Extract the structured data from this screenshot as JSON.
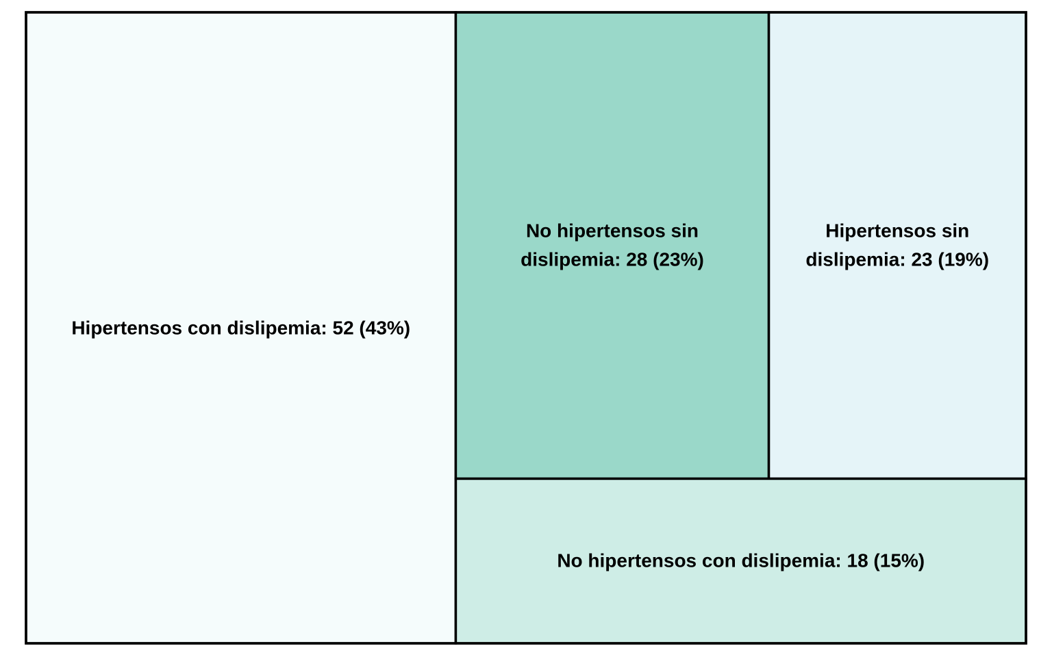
{
  "chart_data": {
    "type": "treemap",
    "title": "",
    "items": [
      {
        "name": "Hipertensos con dislipemia",
        "value": 52,
        "percent": 43,
        "label_lines": [
          "Hipertensos con dislipemia: 52 (43%)"
        ],
        "color": "#f5fcfc"
      },
      {
        "name": "No hipertensos sin dislipemia",
        "value": 28,
        "percent": 23,
        "label_lines": [
          "No hipertensos sin",
          "dislipemia: 28 (23%)"
        ],
        "color": "#9ad8c9"
      },
      {
        "name": "Hipertensos sin dislipemia",
        "value": 23,
        "percent": 19,
        "label_lines": [
          "Hipertensos sin",
          "dislipemia: 23 (19%)"
        ],
        "color": "#e5f4f8"
      },
      {
        "name": "No hipertensos con dislipemia",
        "value": 18,
        "percent": 15,
        "label_lines": [
          "No hipertensos con dislipemia: 18 (15%)"
        ],
        "color": "#ceede6"
      }
    ],
    "border_color": "#000000"
  }
}
